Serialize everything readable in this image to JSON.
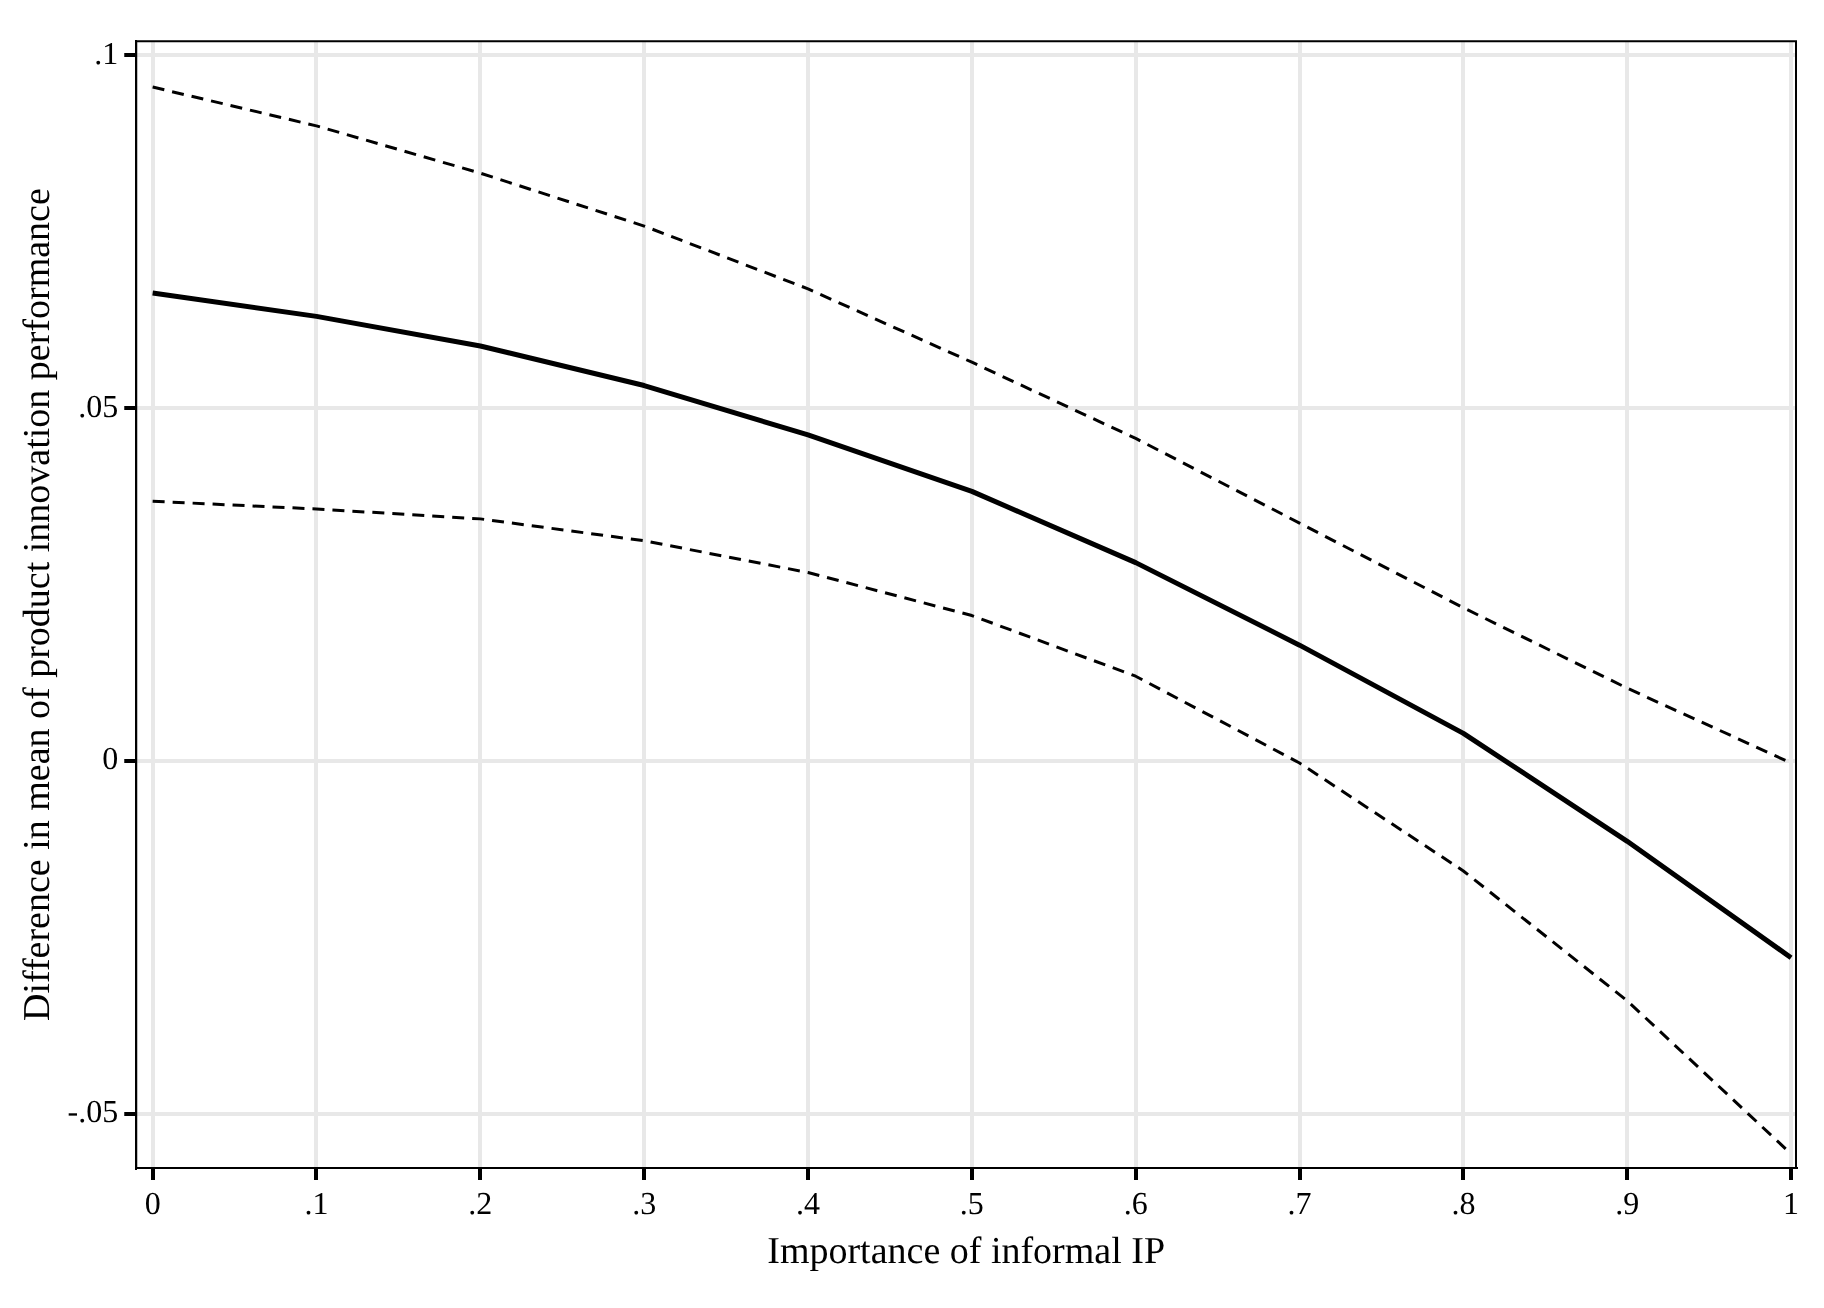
{
  "chart_data": {
    "type": "line",
    "xlabel": "Importance of informal IP",
    "ylabel": "Difference in mean of product innovation performance",
    "x": [
      0,
      0.1,
      0.2,
      0.3,
      0.4,
      0.5,
      0.6,
      0.7,
      0.8,
      0.9,
      1
    ],
    "series": [
      {
        "color": "#000000",
        "line_style": "solid",
        "values": [
          0.0663,
          0.063,
          0.0588,
          0.0532,
          0.0462,
          0.0382,
          0.0281,
          0.0164,
          0.0039,
          -0.0114,
          -0.0279
        ]
      },
      {
        "color": "#000000",
        "line_style": "dashed",
        "values": [
          0.0955,
          0.09,
          0.0833,
          0.0758,
          0.0669,
          0.0565,
          0.0457,
          0.0337,
          0.0217,
          0.0103,
          -0.0003
        ]
      },
      {
        "color": "#000000",
        "line_style": "dashed",
        "values": [
          0.0368,
          0.0357,
          0.0343,
          0.0312,
          0.0267,
          0.0206,
          0.012,
          -0.0003,
          -0.0156,
          -0.034,
          -0.0557
        ]
      }
    ],
    "xlim": [
      -0.01,
      1.003
    ],
    "ylim": [
      -0.0577,
      0.102
    ],
    "xticks": [
      0,
      {
        "value": 0.1,
        "label": ".1"
      },
      {
        "value": 0.2,
        "label": ".2"
      },
      {
        "value": 0.3,
        "label": ".3"
      },
      {
        "value": 0.4,
        "label": ".4"
      },
      {
        "value": 0.5,
        "label": ".5"
      },
      {
        "value": 0.6,
        "label": ".6"
      },
      {
        "value": 0.7,
        "label": ".7"
      },
      {
        "value": 0.8,
        "label": ".8"
      },
      {
        "value": 0.9,
        "label": ".9"
      },
      1
    ],
    "yticks": [
      {
        "value": -0.05,
        "label": "-.05"
      },
      0,
      {
        "value": 0.05,
        "label": ".05"
      },
      {
        "value": 0.1,
        "label": ".1"
      }
    ],
    "grid": true,
    "legend": false,
    "marker": "none"
  }
}
